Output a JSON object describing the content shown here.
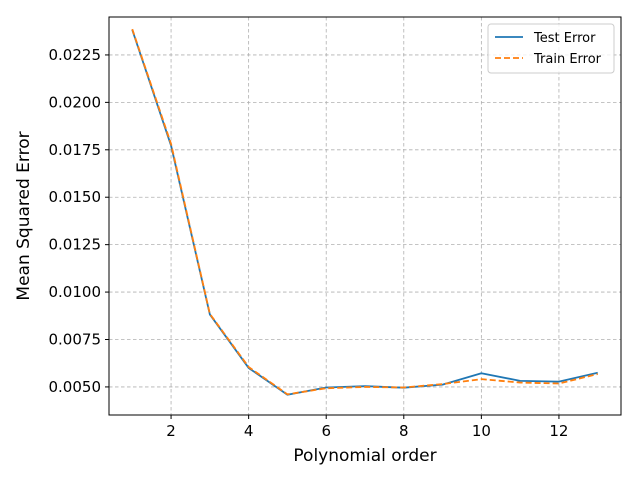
{
  "chart_data": {
    "type": "line",
    "xlabel": "Polynomial order",
    "ylabel": "Mean Squared Error",
    "xlim": [
      0.4,
      13.6
    ],
    "ylim": [
      0.00352,
      0.0245
    ],
    "x_ticks": [
      2,
      4,
      6,
      8,
      10,
      12
    ],
    "y_ticks": [
      0.005,
      0.0075,
      0.01,
      0.0125,
      0.015,
      0.0175,
      0.02,
      0.0225
    ],
    "grid": true,
    "legend_position": "top-right",
    "x": [
      1,
      2,
      3,
      4,
      5,
      6,
      7,
      8,
      9,
      10,
      11,
      12,
      13
    ],
    "series": [
      {
        "name": "Test Error",
        "color": "#1f77b4",
        "style": "solid",
        "values": [
          0.02382,
          0.01772,
          0.00882,
          0.006,
          0.00459,
          0.00497,
          0.00504,
          0.00496,
          0.00512,
          0.00572,
          0.00532,
          0.00528,
          0.00575
        ]
      },
      {
        "name": "Train Error",
        "color": "#ff7f0e",
        "style": "dashed",
        "values": [
          0.02386,
          0.01781,
          0.00885,
          0.00605,
          0.00461,
          0.00493,
          0.005,
          0.00497,
          0.00515,
          0.00541,
          0.00523,
          0.00518,
          0.00568
        ]
      }
    ]
  }
}
